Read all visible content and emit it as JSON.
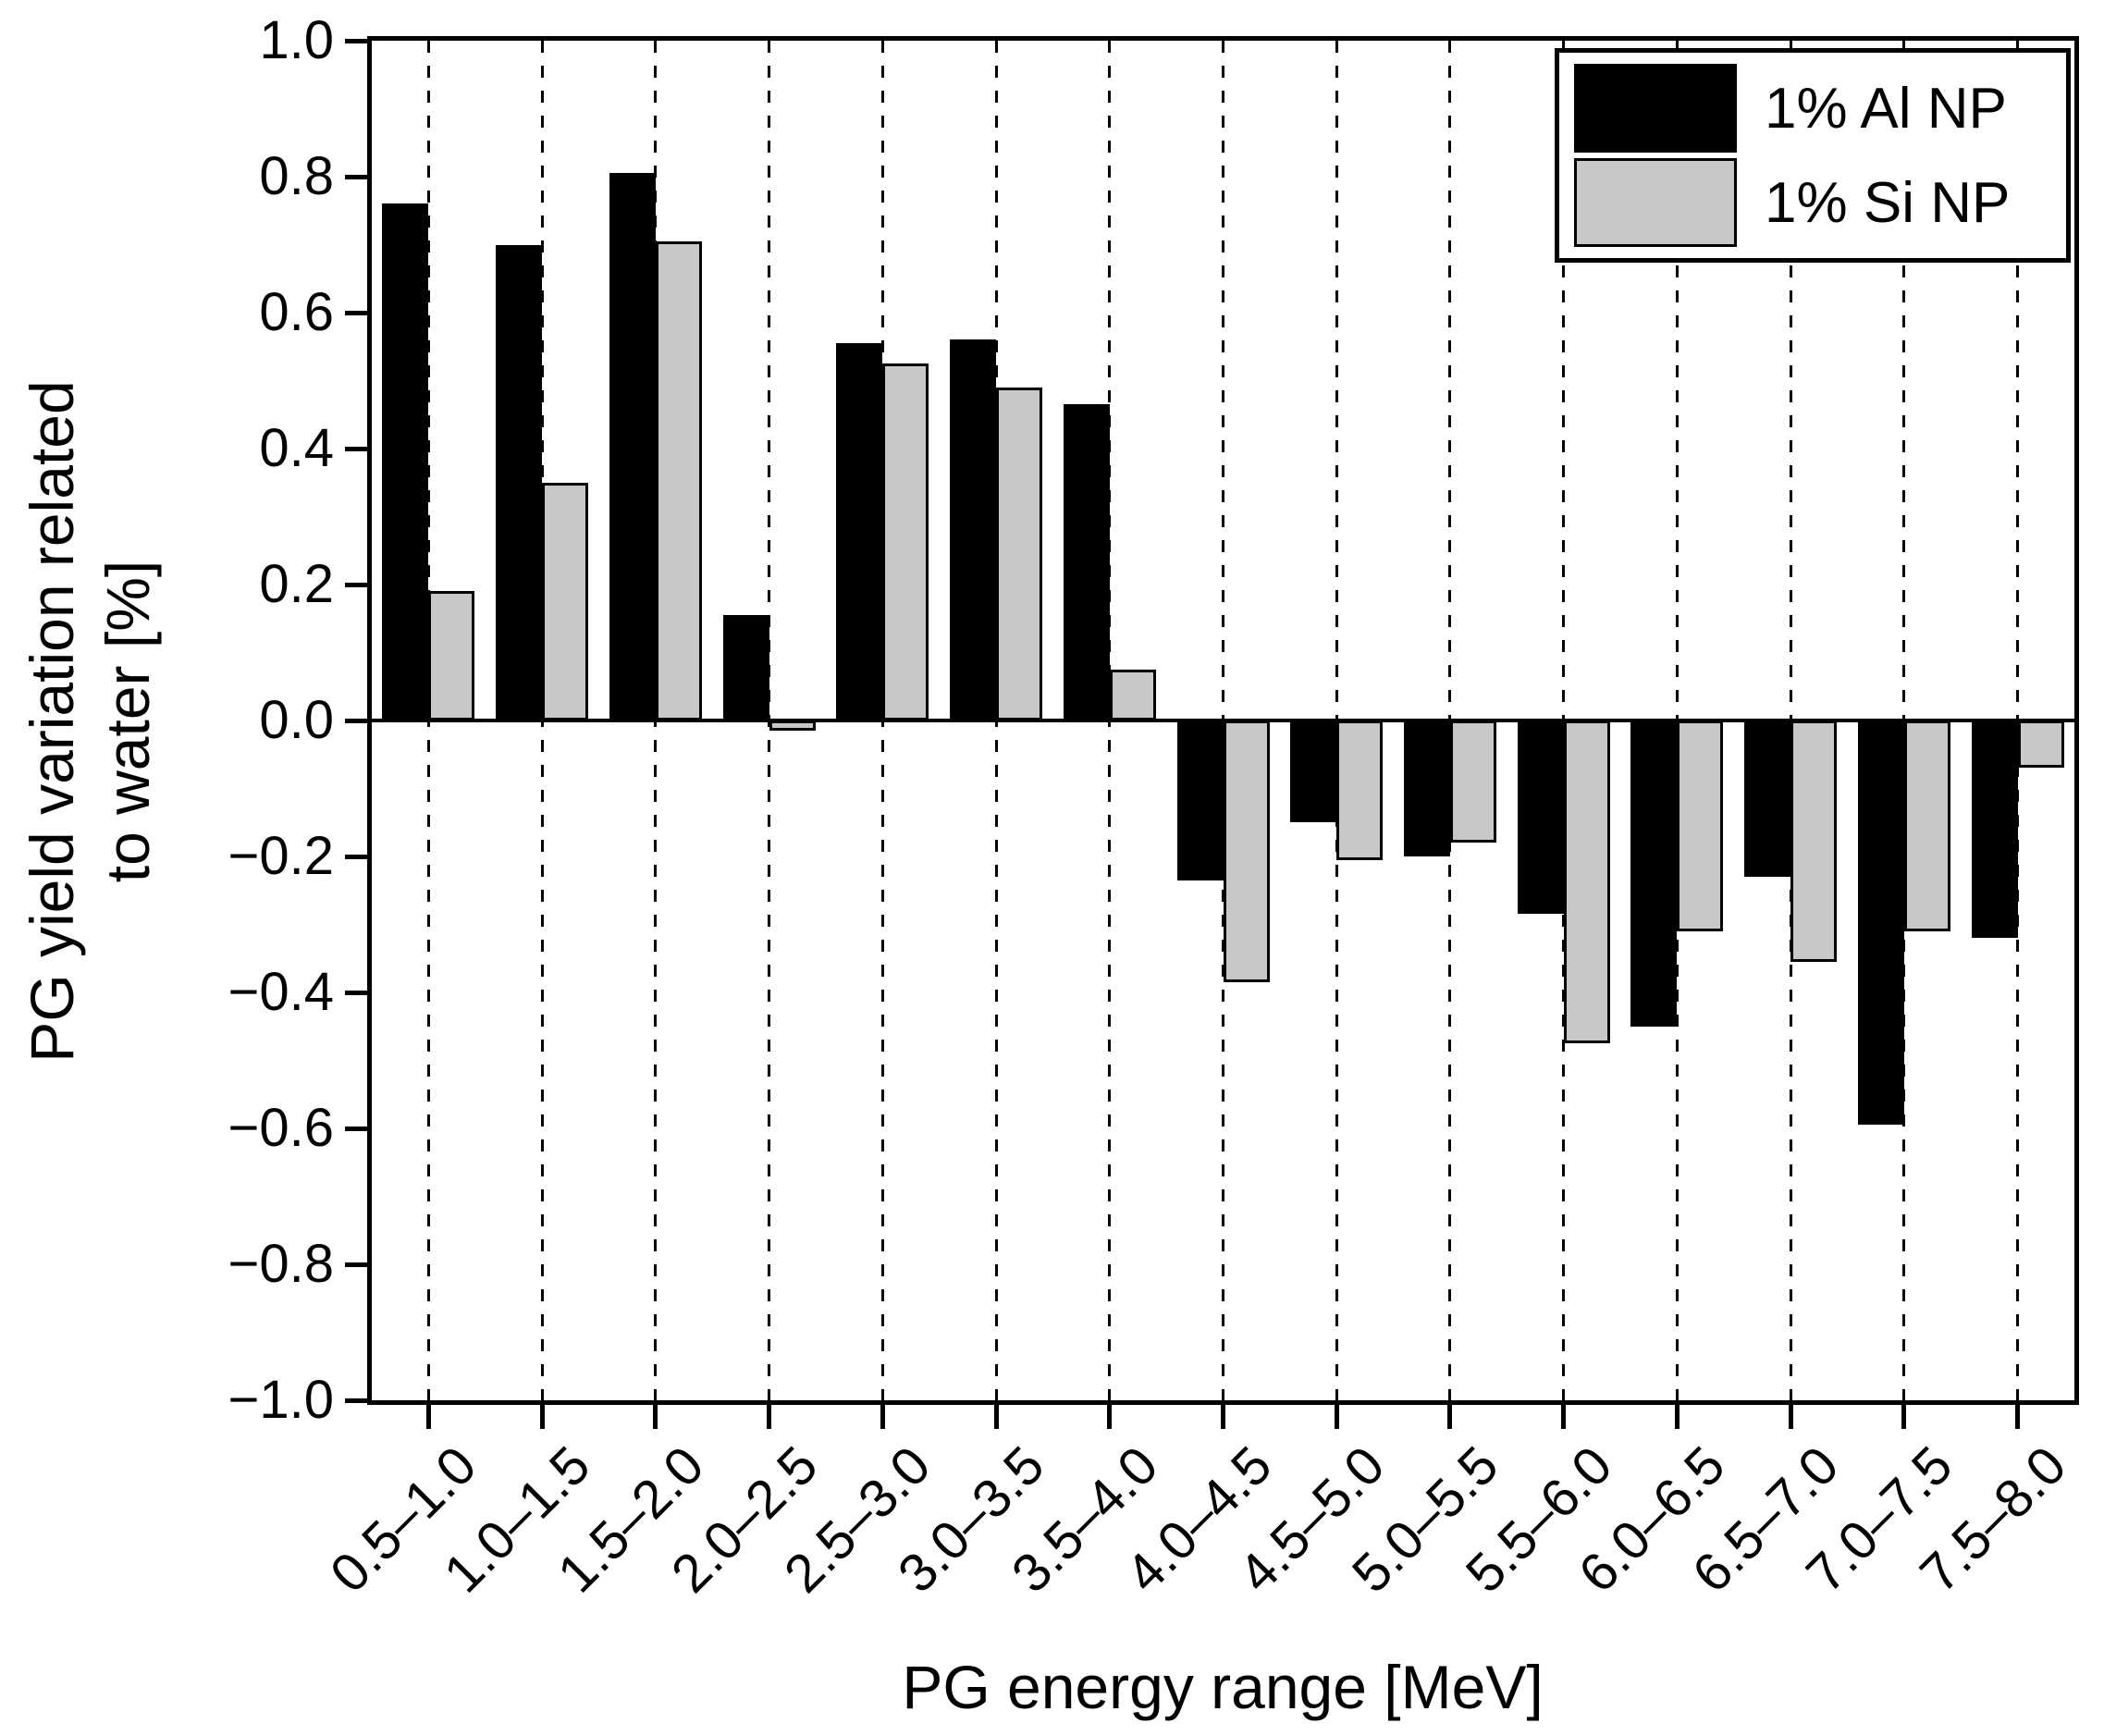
{
  "chart_data": {
    "type": "bar",
    "title": "",
    "xlabel": "PG energy range [MeV]",
    "ylabel": "PG yield variation related to water [%]",
    "ylabel_lines": [
      "PG yield variation related",
      "to water [%]"
    ],
    "categories": [
      "0.5–1.0",
      "1.0–1.5",
      "1.5–2.0",
      "2.0–2.5",
      "2.5–3.0",
      "3.0–3.5",
      "3.5–4.0",
      "4.0–4.5",
      "4.5–5.0",
      "5.0–5.5",
      "5.5–6.0",
      "6.0–6.5",
      "6.5–7.0",
      "7.0–7.5",
      "7.5–8.0"
    ],
    "series": [
      {
        "name": "1% Al NP",
        "color": "#000000",
        "values": [
          0.76,
          0.7,
          0.805,
          0.155,
          0.555,
          0.56,
          0.465,
          -0.235,
          -0.15,
          -0.2,
          -0.285,
          -0.45,
          -0.23,
          -0.595,
          -0.32
        ]
      },
      {
        "name": "1% Si NP",
        "color": "#c8c8c8",
        "values": [
          0.19,
          0.35,
          0.705,
          -0.015,
          0.525,
          0.49,
          0.075,
          -0.385,
          -0.205,
          -0.18,
          -0.475,
          -0.31,
          -0.355,
          -0.31,
          -0.07
        ]
      }
    ],
    "ylim": [
      -1.0,
      1.0
    ],
    "ytick_step": 0.2,
    "yticks": [
      "1.0",
      "0.8",
      "0.6",
      "0.4",
      "0.2",
      "0.0",
      "−0.2",
      "−0.4",
      "−0.6",
      "−0.8",
      "−1.0"
    ],
    "grid": "vertical-dashed",
    "legend_position": "top-right"
  }
}
